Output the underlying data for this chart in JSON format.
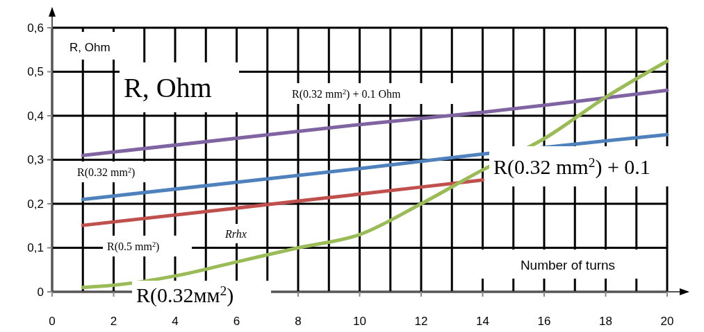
{
  "chart_data": {
    "type": "line",
    "ylabel": "R, Ohm",
    "xlabel": "Number of turns",
    "xlim": [
      0,
      20
    ],
    "ylim": [
      0,
      0.6
    ],
    "xticks": [
      0,
      {
        "value": 1,
        "label": null
      },
      2,
      {
        "value": 3,
        "label": null
      },
      4,
      {
        "value": 5,
        "label": null
      },
      6,
      {
        "value": 7,
        "label": null
      },
      8,
      {
        "value": 9,
        "label": null
      },
      10,
      {
        "value": 11,
        "label": null
      },
      12,
      {
        "value": 13,
        "label": null
      },
      14,
      {
        "value": 15,
        "label": null
      },
      16,
      {
        "value": 17,
        "label": null
      },
      18,
      {
        "value": 19,
        "label": null
      },
      20
    ],
    "yticks": [
      0,
      {
        "value": 0.1,
        "label": "0,1"
      },
      {
        "value": 0.2,
        "label": "0,2"
      },
      {
        "value": 0.3,
        "label": "0,3"
      },
      {
        "value": 0.4,
        "label": "0,4"
      },
      {
        "value": 0.5,
        "label": "0,5"
      },
      {
        "value": 0.6,
        "label": "0,6"
      }
    ],
    "grid": true,
    "line_style": "solid",
    "marker": "none",
    "series": [
      {
        "color": "#8064a2",
        "x": [
          1,
          10,
          14,
          20
        ],
        "values": [
          0.31,
          0.38,
          0.408,
          0.458
        ]
      },
      {
        "color": "#4f81bd",
        "x": [
          1,
          10,
          14,
          18,
          20
        ],
        "values": [
          0.21,
          0.28,
          0.313,
          0.343,
          0.357
        ]
      },
      {
        "color": "#c0504d",
        "x": [
          1,
          6,
          10,
          14
        ],
        "values": [
          0.151,
          0.19,
          0.222,
          0.254
        ]
      },
      {
        "color": "#9bbb59",
        "x": [
          1,
          2,
          4,
          6,
          8,
          10,
          12,
          14,
          16,
          18,
          20
        ],
        "values": [
          0.01,
          0.015,
          0.036,
          0.068,
          0.1,
          0.13,
          0.2,
          0.277,
          0.348,
          0.442,
          0.524
        ]
      }
    ],
    "annotations": [
      "R(0.32 mm$^{2}$) + 0.1 Ohm",
      "R(0.32 mm$^{2}$)",
      "R(0.5 mm$^{2}$)",
      "Rrhx",
      "R, Ohm",
      "R(0.32 mm$^{2}$) + 0.1",
      "R(0.32мм$^{2}$)"
    ]
  }
}
